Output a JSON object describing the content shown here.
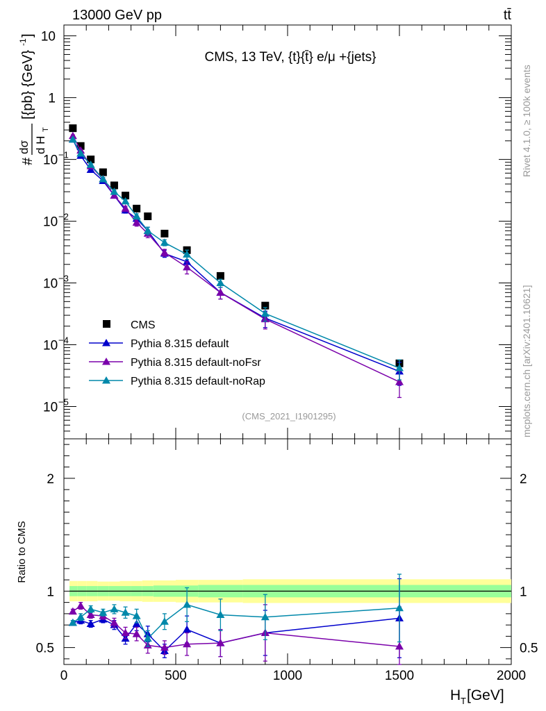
{
  "header": {
    "left": "13000 GeV pp",
    "right": "tt̄"
  },
  "side": {
    "rivet": "Rivet 4.1.0, ≥ 100k events",
    "mcplots": "mcplots.cern.ch [arXiv:2401.10621]"
  },
  "colors": {
    "cms": "#000000",
    "default": "#0000cc",
    "noFsr": "#7a00aa",
    "noRap": "#0088aa",
    "band_outer": "#ffff99",
    "band_inner": "#99ff99"
  },
  "chart_data": [
    {
      "type": "line",
      "panel": "main",
      "title": "CMS, 13 TeV, {t}{t̄} e/μ +{jets}",
      "watermark": "(CMS_2021_I1901295)",
      "ylabel": "# dσ/dH_T [{pb} {GeV}^-1]",
      "ylabel_parts": {
        "hash": "#",
        "num": "dσ",
        "den": "d H",
        "den_sub": "T",
        "rest": "[{pb} {GeV}",
        "sup": "-1",
        "close": "]"
      },
      "yscale": "log",
      "xlim": [
        0,
        2000
      ],
      "ylim": [
        3e-06,
        15
      ],
      "y_ticks": [
        {
          "v": 10,
          "label": "10"
        },
        {
          "v": 1,
          "label": "1"
        },
        {
          "v": 0.1,
          "label": "10",
          "exp": "−1"
        },
        {
          "v": 0.01,
          "label": "10",
          "exp": "−2"
        },
        {
          "v": 0.001,
          "label": "10",
          "exp": "−3"
        },
        {
          "v": 0.0001,
          "label": "10",
          "exp": "−4"
        },
        {
          "v": 1e-05,
          "label": "10",
          "exp": "−5"
        }
      ],
      "legend_position": "middle-left",
      "x": [
        40,
        75,
        120,
        175,
        225,
        275,
        325,
        375,
        450,
        550,
        700,
        900,
        1500
      ],
      "series": [
        {
          "name": "CMS",
          "marker": "square",
          "values": [
            0.32,
            0.165,
            0.1,
            0.062,
            0.038,
            0.026,
            0.016,
            0.012,
            0.0063,
            0.0034,
            0.0013,
            0.00043,
            5e-05
          ],
          "err_up": [
            0,
            0,
            0,
            0,
            0,
            0,
            0,
            0,
            0,
            0,
            0,
            0,
            6e-06
          ]
        },
        {
          "name": "Pythia 8.315 default",
          "marker": "triangle",
          "values": [
            0.21,
            0.115,
            0.068,
            0.045,
            0.026,
            0.015,
            0.011,
            0.007,
            0.003,
            0.0022,
            0.0007,
            0.00027,
            3.7e-05
          ],
          "err_up": [
            0.01,
            0.006,
            0.004,
            0.003,
            0.002,
            0.0015,
            0.0012,
            0.001,
            0.0004,
            0.0005,
            0.00015,
            8e-05,
            1.5e-05
          ],
          "err_dn": [
            0.01,
            0.006,
            0.004,
            0.003,
            0.002,
            0.0015,
            0.0012,
            0.001,
            0.0004,
            0.0005,
            0.00015,
            8e-05,
            1.5e-05
          ]
        },
        {
          "name": "Pythia 8.315 default-noFsr",
          "marker": "triangle",
          "values": [
            0.24,
            0.14,
            0.078,
            0.048,
            0.026,
            0.016,
            0.0095,
            0.0063,
            0.0031,
            0.0018,
            0.0007,
            0.00026,
            2.5e-05
          ],
          "err_up": [
            0.01,
            0.006,
            0.004,
            0.003,
            0.002,
            0.0015,
            0.0012,
            0.0009,
            0.0004,
            0.0004,
            0.00015,
            8e-05,
            1.2e-05
          ],
          "err_dn": [
            0.01,
            0.006,
            0.004,
            0.003,
            0.002,
            0.0015,
            0.0012,
            0.0009,
            0.0004,
            0.0004,
            0.00015,
            8e-05,
            1.1e-05
          ]
        },
        {
          "name": "Pythia 8.315 default-noRap",
          "marker": "triangle",
          "values": [
            0.21,
            0.125,
            0.082,
            0.048,
            0.03,
            0.021,
            0.012,
            0.007,
            0.0045,
            0.0029,
            0.001,
            0.00032,
            4.2e-05
          ],
          "err_up": [
            0.01,
            0.006,
            0.004,
            0.003,
            0.002,
            0.0015,
            0.0012,
            0.001,
            0.0005,
            0.0005,
            0.00015,
            8e-05,
            1.5e-05
          ],
          "err_dn": [
            0.01,
            0.006,
            0.004,
            0.003,
            0.002,
            0.0015,
            0.0012,
            0.001,
            0.0005,
            0.0005,
            0.00015,
            8e-05,
            1.5e-05
          ]
        }
      ]
    },
    {
      "type": "line",
      "panel": "ratio",
      "ylabel": "Ratio to CMS",
      "xlabel": "H_T [GeV]",
      "xlabel_parts": {
        "main": "H",
        "sub": "T",
        "rest": " [GeV]"
      },
      "xlim": [
        0,
        2000
      ],
      "ylim": [
        0.35,
        2.35
      ],
      "x_ticks": [
        0,
        500,
        1000,
        1500,
        2000
      ],
      "y_ticks": [
        0.5,
        1,
        2
      ],
      "y_tick_labels": [
        "0.5",
        "1",
        "2"
      ],
      "band_bins": [
        25,
        60,
        100,
        150,
        200,
        250,
        300,
        350,
        400,
        500,
        600,
        800,
        1000,
        2000
      ],
      "band_outer": [
        0.09,
        0.09,
        0.09,
        0.085,
        0.085,
        0.09,
        0.09,
        0.095,
        0.095,
        0.1,
        0.1,
        0.105,
        0.105
      ],
      "band_inner": [
        0.045,
        0.045,
        0.045,
        0.045,
        0.045,
        0.045,
        0.045,
        0.045,
        0.05,
        0.05,
        0.055,
        0.055,
        0.055
      ],
      "x": [
        40,
        75,
        120,
        175,
        225,
        275,
        325,
        375,
        450,
        550,
        700,
        900,
        1500
      ],
      "series": [
        {
          "name": "Pythia 8.315 default",
          "values": [
            0.72,
            0.74,
            0.71,
            0.75,
            0.7,
            0.58,
            0.71,
            0.62,
            0.47,
            0.66,
            0.54,
            0.63,
            0.76
          ],
          "err": [
            0.02,
            0.03,
            0.03,
            0.03,
            0.04,
            0.05,
            0.06,
            0.07,
            0.06,
            0.12,
            0.12,
            0.2,
            0.35
          ]
        },
        {
          "name": "Pythia 8.315 default-noFsr",
          "values": [
            0.82,
            0.87,
            0.79,
            0.78,
            0.72,
            0.63,
            0.62,
            0.52,
            0.5,
            0.53,
            0.54,
            0.63,
            0.51
          ],
          "err": [
            0.02,
            0.03,
            0.03,
            0.03,
            0.04,
            0.05,
            0.06,
            0.07,
            0.06,
            0.1,
            0.12,
            0.25,
            0.35
          ]
        },
        {
          "name": "Pythia 8.315 default-noRap",
          "values": [
            0.72,
            0.77,
            0.84,
            0.81,
            0.84,
            0.81,
            0.78,
            0.58,
            0.73,
            0.88,
            0.79,
            0.77,
            0.85
          ],
          "err": [
            0.02,
            0.03,
            0.03,
            0.03,
            0.04,
            0.05,
            0.06,
            0.07,
            0.07,
            0.15,
            0.14,
            0.2,
            0.3
          ]
        }
      ]
    }
  ]
}
